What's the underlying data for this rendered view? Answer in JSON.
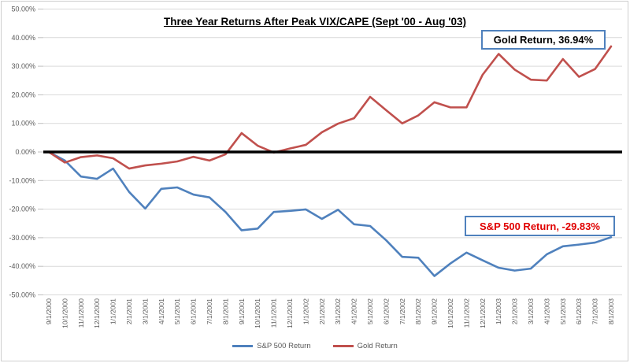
{
  "title": "Three Year Returns After Peak VIX/CAPE (Sept '00 - Aug '03)",
  "annotations": {
    "gold_label": "Gold Return, 36.94%",
    "sp500_label": "S&P 500 Return, -29.83%"
  },
  "colors": {
    "sp500": "#4f81bd",
    "gold": "#c0504d",
    "gridline": "#d9d9d9",
    "axis_text": "#595959",
    "zero_line": "#000000",
    "annotation_border": "#4f81bd",
    "sp500_label_text": "#e00000"
  },
  "chart_data": {
    "type": "line",
    "title": "Three Year Returns After Peak VIX/CAPE (Sept '00 - Aug '03)",
    "x": [
      "9/1/2000",
      "10/1/2000",
      "11/1/2000",
      "12/1/2000",
      "1/1/2001",
      "2/1/2001",
      "3/1/2001",
      "4/1/2001",
      "5/1/2001",
      "6/1/2001",
      "7/1/2001",
      "8/1/2001",
      "9/1/2001",
      "10/1/2001",
      "11/1/2001",
      "12/1/2001",
      "1/1/2002",
      "2/1/2002",
      "3/1/2002",
      "4/1/2002",
      "5/1/2002",
      "6/1/2002",
      "7/1/2002",
      "8/1/2002",
      "9/1/2002",
      "10/1/2002",
      "11/1/2002",
      "12/1/2002",
      "1/1/2003",
      "2/1/2003",
      "3/1/2003",
      "4/1/2003",
      "5/1/2003",
      "6/1/2003",
      "7/1/2003",
      "8/1/2003"
    ],
    "series": [
      {
        "name": "S&P 500 Return",
        "color": "#4f81bd",
        "values": [
          0.0,
          -3.0,
          -8.6,
          -9.4,
          -5.8,
          -14.0,
          -19.8,
          -12.9,
          -12.4,
          -14.9,
          -15.9,
          -21.0,
          -27.4,
          -26.8,
          -21.0,
          -20.6,
          -20.1,
          -23.4,
          -20.2,
          -25.3,
          -25.9,
          -30.9,
          -36.7,
          -37.0,
          -43.4,
          -39.0,
          -35.2,
          -37.9,
          -40.5,
          -41.5,
          -40.8,
          -35.8,
          -33.0,
          -32.4,
          -31.7,
          -29.83
        ]
      },
      {
        "name": "Gold Return",
        "color": "#c0504d",
        "values": [
          0.0,
          -3.7,
          -1.8,
          -1.2,
          -2.2,
          -5.8,
          -4.7,
          -4.1,
          -3.3,
          -1.7,
          -3.0,
          -0.8,
          6.6,
          2.2,
          -0.2,
          1.2,
          2.5,
          6.9,
          9.9,
          11.8,
          19.3,
          14.6,
          10.0,
          12.8,
          17.4,
          15.6,
          15.6,
          27.0,
          34.3,
          28.8,
          25.3,
          25.0,
          32.5,
          26.3,
          29.0,
          36.94
        ]
      }
    ],
    "ylim": [
      -50,
      50
    ],
    "yticks": [
      50,
      40,
      30,
      20,
      10,
      0,
      -10,
      -20,
      -30,
      -40,
      -50
    ],
    "ytick_labels": [
      "50.00%",
      "40.00%",
      "30.00%",
      "20.00%",
      "10.00%",
      "0.00%",
      "-10.00%",
      "-20.00%",
      "-30.00%",
      "-40.00%",
      "-50.00%"
    ],
    "grid": true,
    "legend_position": "bottom",
    "zero_line": true
  }
}
